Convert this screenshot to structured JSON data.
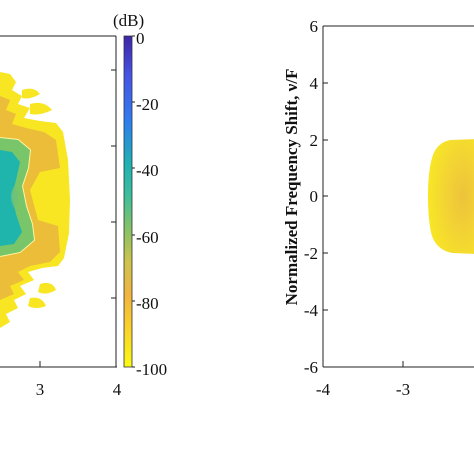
{
  "chart_data": [
    {
      "type": "heatmap",
      "colorbar": {
        "title": "(dB)",
        "ticks": [
          "0",
          "-20",
          "-40",
          "-60",
          "-80",
          "-100"
        ],
        "range": [
          -100,
          0
        ],
        "colormap": [
          "#fafa14",
          "#f9d02c",
          "#f0b440",
          "#cdc34e",
          "#84c268",
          "#3cbe9d",
          "#1fb0b6",
          "#2f7ff0",
          "#4554e6",
          "#3e26a8"
        ]
      },
      "x_ticks": [
        "3",
        "4"
      ],
      "xlim": [
        -4,
        4
      ],
      "colors": {
        "outer": "#f8e622",
        "mid": "#ecbd39",
        "inner": "#78c56a",
        "core": "#1fb4ac"
      }
    },
    {
      "type": "heatmap",
      "ylabel": "Normalized Frequency Shift, ν/F",
      "y_ticks": [
        "6",
        "4",
        "2",
        "0",
        "-2",
        "-4",
        "-6"
      ],
      "x_ticks": [
        "-4",
        "-3"
      ],
      "ylim": [
        -6,
        6
      ],
      "xlim": [
        -4,
        4
      ],
      "colors": {
        "outer": "#f8e626",
        "inner": "#eec33a"
      }
    }
  ]
}
